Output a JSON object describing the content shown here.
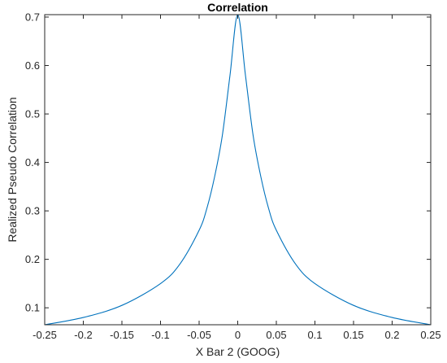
{
  "chart_data": {
    "type": "line",
    "title": "Correlation",
    "xlabel": "X Bar 2 (GOOG)",
    "ylabel": "Realized Pseudo Correlation",
    "xlim": [
      -0.25,
      0.25
    ],
    "ylim": [
      0.065,
      0.705
    ],
    "xticks": [
      -0.25,
      -0.2,
      -0.15,
      -0.1,
      -0.05,
      0,
      0.05,
      0.1,
      0.15,
      0.2,
      0.25
    ],
    "xtick_labels": [
      "-0.25",
      "-0.2",
      "-0.15",
      "-0.1",
      "-0.05",
      "0",
      "0.05",
      "0.1",
      "0.15",
      "0.2",
      "0.25"
    ],
    "yticks": [
      0.1,
      0.2,
      0.3,
      0.4,
      0.5,
      0.6,
      0.7
    ],
    "ytick_labels": [
      "0.1",
      "0.2",
      "0.3",
      "0.4",
      "0.5",
      "0.6",
      "0.7"
    ],
    "grid": false,
    "series": [
      {
        "color": "#0072BD",
        "x": [
          -0.25,
          -0.2,
          -0.15,
          -0.1,
          -0.075,
          -0.05,
          -0.04,
          -0.03,
          -0.02,
          -0.01,
          0,
          0.01,
          0.02,
          0.03,
          0.04,
          0.05,
          0.075,
          0.1,
          0.15,
          0.2,
          0.25
        ],
        "y": [
          0.065,
          0.08,
          0.105,
          0.15,
          0.19,
          0.26,
          0.305,
          0.37,
          0.455,
          0.58,
          0.705,
          0.58,
          0.455,
          0.37,
          0.305,
          0.26,
          0.19,
          0.15,
          0.105,
          0.08,
          0.065
        ]
      }
    ]
  }
}
